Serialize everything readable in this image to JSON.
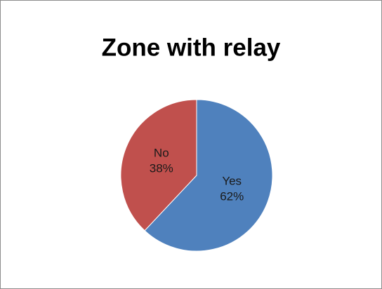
{
  "chart_data": {
    "type": "pie",
    "title": "Zone with relay",
    "categories": [
      "Yes",
      "No"
    ],
    "values": [
      62,
      38
    ],
    "value_labels": [
      "62%",
      "38%"
    ],
    "colors": [
      "#4f81bd",
      "#c0504d"
    ]
  }
}
